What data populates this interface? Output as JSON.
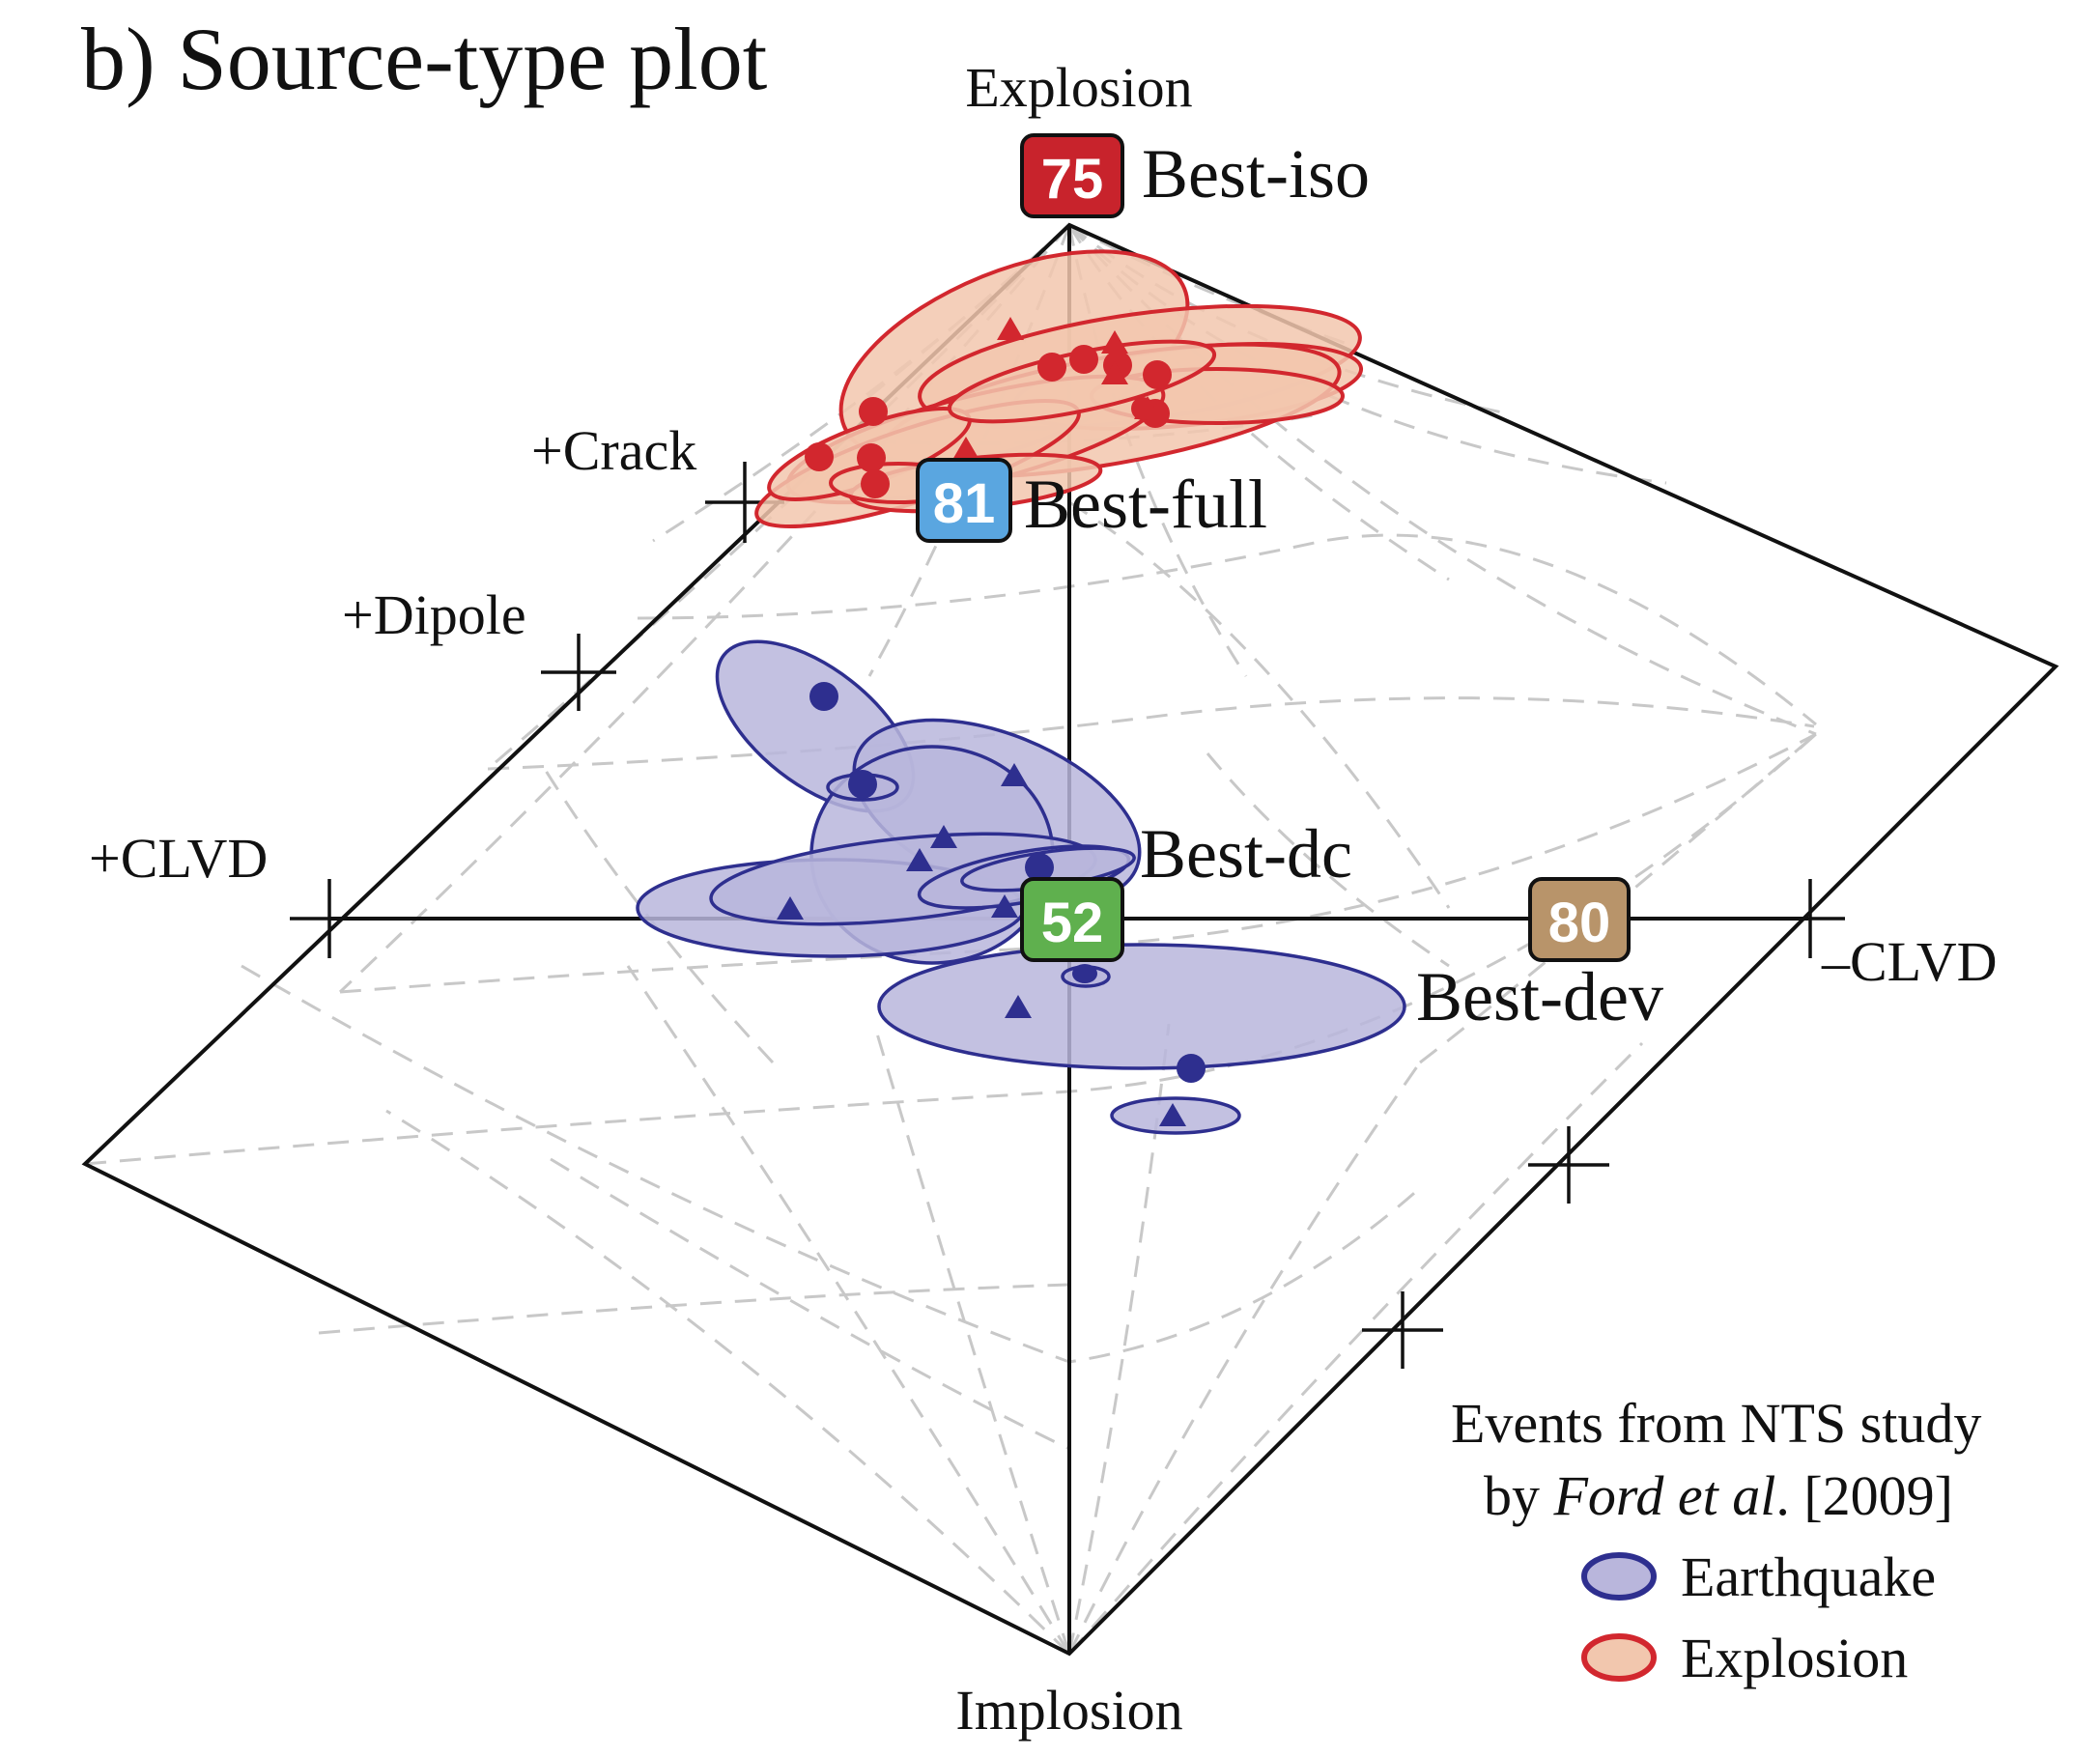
{
  "title": "b) Source-type plot",
  "vertex_labels": {
    "top": "Explosion",
    "bottom": "Implosion",
    "left": "+CLVD",
    "right": "–CLVD",
    "crack": "+Crack",
    "dipole": "+Dipole"
  },
  "best_solutions": [
    {
      "number": "75",
      "label": "Best-iso",
      "color": "#c8232c"
    },
    {
      "number": "81",
      "label": "Best-full",
      "color": "#5aa6e0"
    },
    {
      "number": "52",
      "label": "Best-dc",
      "color": "#5fb04e"
    },
    {
      "number": "80",
      "label": "Best-dev",
      "color": "#b8946a"
    }
  ],
  "legend": {
    "heading_line1": "Events from NTS study",
    "heading_line2_pre": "by ",
    "heading_line2_author": "Ford et al",
    "heading_line2_post": ". [2009]",
    "items": [
      {
        "label": "Earthquake",
        "fill": "#b9b6dc",
        "stroke": "#2e2f8f"
      },
      {
        "label": "Explosion",
        "fill": "#f2c7ae",
        "stroke": "#d2272e"
      }
    ]
  },
  "colors": {
    "earthquake_fill": "#b9b6dc",
    "earthquake_stroke": "#2e2f8f",
    "explosion_fill": "#f2c7ae",
    "explosion_stroke": "#d2272e",
    "grid": "#c8c8c8"
  }
}
